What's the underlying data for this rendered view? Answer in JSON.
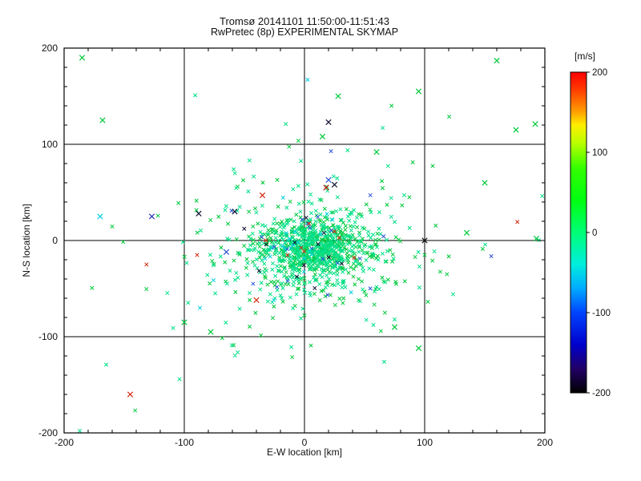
{
  "page": {
    "background": "#ffffff"
  },
  "chart_data": {
    "type": "scatter",
    "title_line1": "Tromsø 20141101 11:50:00-11:51:43",
    "title_line2": "RwPretec (8p) EXPERIMENTAL SKYMAP",
    "xlabel": "E-W location [km]",
    "ylabel": "N-S location [km]",
    "xlim": [
      -200,
      200
    ],
    "ylim": [
      -200,
      200
    ],
    "xticks": [
      -200,
      -100,
      0,
      100,
      200
    ],
    "yticks": [
      -200,
      -100,
      0,
      100,
      200
    ],
    "grid_x": [
      -100,
      0,
      100
    ],
    "grid_y": [
      -100,
      0,
      100
    ],
    "minor_tick_step": 20,
    "grid_color": "#000000",
    "marker": "x",
    "colorbar": {
      "label": "[m/s]",
      "label_color": "#993333",
      "ticks": [
        200,
        100,
        0,
        -100,
        -200
      ],
      "range": [
        -200,
        200
      ],
      "stops": [
        {
          "v": 200,
          "c": "#ff0000"
        },
        {
          "v": 178,
          "c": "#ff3c00"
        },
        {
          "v": 152,
          "c": "#ff9900"
        },
        {
          "v": 134,
          "c": "#ffee00"
        },
        {
          "v": 112,
          "c": "#bbff00"
        },
        {
          "v": 80,
          "c": "#33ff00"
        },
        {
          "v": 40,
          "c": "#00ff11"
        },
        {
          "v": 0,
          "c": "#00ff77"
        },
        {
          "v": -40,
          "c": "#00eedd"
        },
        {
          "v": -70,
          "c": "#00aaff"
        },
        {
          "v": -100,
          "c": "#0044ff"
        },
        {
          "v": -140,
          "c": "#0000cc"
        },
        {
          "v": -170,
          "c": "#220066"
        },
        {
          "v": -200,
          "c": "#000000"
        }
      ]
    },
    "cluster_components": [
      {
        "count": 700,
        "cx": 6,
        "cy": -8,
        "sx": 21,
        "sy": 16,
        "seed": 11
      },
      {
        "count": 380,
        "cx": 2,
        "cy": -12,
        "sx": 52,
        "sy": 38,
        "seed": 22
      },
      {
        "count": 55,
        "cx": 5,
        "cy": 0,
        "sx": 110,
        "sy": 85,
        "seed": 33
      }
    ],
    "palette": [
      {
        "c": "#00e087",
        "w": 0.5
      },
      {
        "c": "#00c93c",
        "w": 0.43
      },
      {
        "c": "#00cfe0",
        "w": 0.025
      },
      {
        "c": "#2a52d8",
        "w": 0.018
      },
      {
        "c": "#d42a10",
        "w": 0.013
      },
      {
        "c": "#101034",
        "w": 0.014
      }
    ],
    "outliers": [
      {
        "x": -185,
        "y": 190,
        "c": "#00c93c"
      },
      {
        "x": -168,
        "y": 125,
        "c": "#00c93c"
      },
      {
        "x": 95,
        "y": 155,
        "c": "#00c93c"
      },
      {
        "x": 160,
        "y": 187,
        "c": "#00c93c"
      },
      {
        "x": 176,
        "y": 115,
        "c": "#00c93c"
      },
      {
        "x": 192,
        "y": 121,
        "c": "#00c93c"
      },
      {
        "x": 28,
        "y": 150,
        "c": "#00c93c"
      },
      {
        "x": 15,
        "y": 108,
        "c": "#00c93c"
      },
      {
        "x": 60,
        "y": 92,
        "c": "#00c93c"
      },
      {
        "x": 135,
        "y": 8,
        "c": "#00c93c"
      },
      {
        "x": 150,
        "y": 60,
        "c": "#00c93c"
      },
      {
        "x": 193,
        "y": 2,
        "c": "#00c93c"
      },
      {
        "x": -100,
        "y": -85,
        "c": "#00c93c"
      },
      {
        "x": 75,
        "y": -90,
        "c": "#00c93c"
      },
      {
        "x": 95,
        "y": -112,
        "c": "#00c93c"
      },
      {
        "x": -78,
        "y": -95,
        "c": "#00c93c"
      },
      {
        "x": -170,
        "y": 25,
        "c": "#00cfe0"
      },
      {
        "x": -127,
        "y": 25,
        "c": "#2233bb"
      },
      {
        "x": 20,
        "y": 63,
        "c": "#2a52d8"
      },
      {
        "x": -65,
        "y": -12,
        "c": "#2a52d8"
      },
      {
        "x": 100,
        "y": 0,
        "c": "#111111"
      },
      {
        "x": 20,
        "y": 123,
        "c": "#101034"
      },
      {
        "x": -88,
        "y": 28,
        "c": "#101034"
      },
      {
        "x": -58,
        "y": 30,
        "c": "#101034"
      },
      {
        "x": 25,
        "y": 58,
        "c": "#101034"
      },
      {
        "x": -145,
        "y": -160,
        "c": "#d42a10"
      },
      {
        "x": -35,
        "y": 47,
        "c": "#d42a10"
      },
      {
        "x": 18,
        "y": 55,
        "c": "#b01000"
      },
      {
        "x": -40,
        "y": -62,
        "c": "#d42a10"
      }
    ]
  }
}
